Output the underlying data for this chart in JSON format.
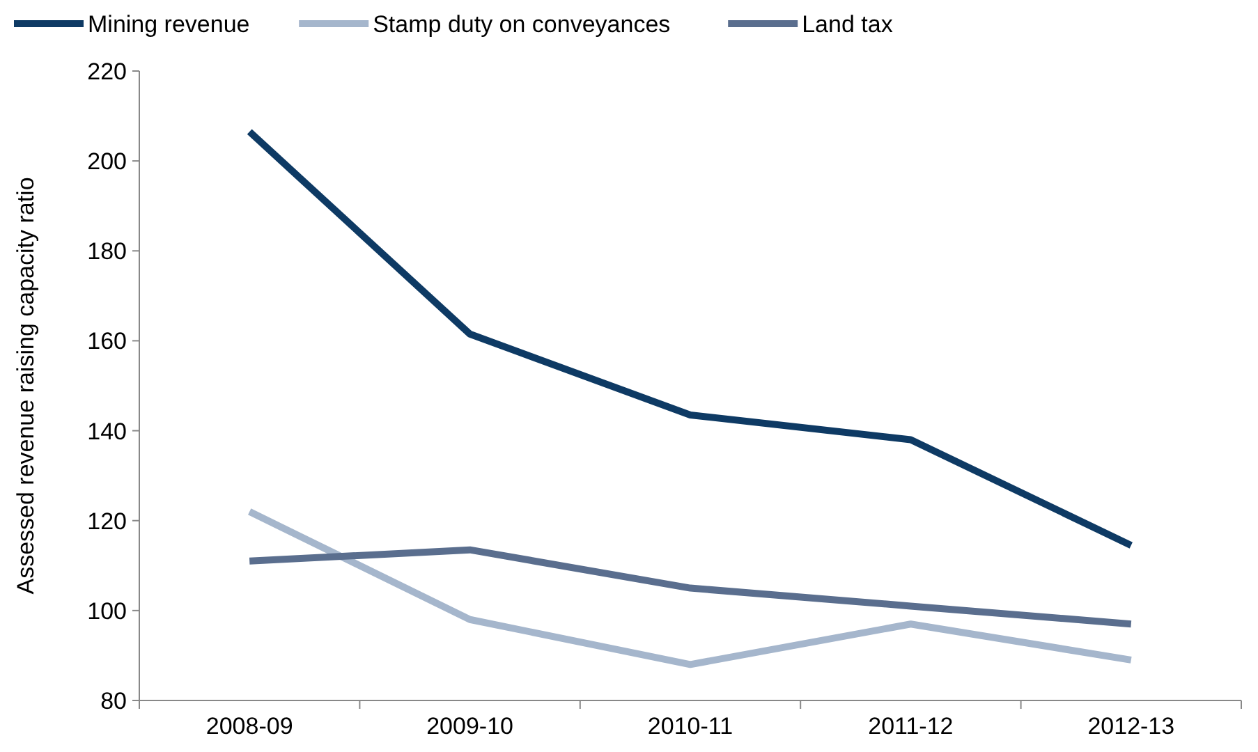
{
  "chart_data": {
    "type": "line",
    "ylabel": "Assessed revenue raising capacity ratio",
    "categories": [
      "2008-09",
      "2009-10",
      "2010-11",
      "2011-12",
      "2012-13"
    ],
    "series": [
      {
        "name": "Mining revenue",
        "color": "#0e3a64",
        "values": [
          206.5,
          161.5,
          143.5,
          138,
          114.5
        ]
      },
      {
        "name": "Stamp duty on conveyances",
        "color": "#a5b6cc",
        "values": [
          122,
          98,
          88,
          97,
          89
        ]
      },
      {
        "name": "Land tax",
        "color": "#5a6e8e",
        "values": [
          111,
          113.5,
          105,
          101,
          97
        ]
      }
    ],
    "ylim": [
      80,
      220
    ],
    "yticks": [
      80,
      100,
      120,
      140,
      160,
      180,
      200,
      220
    ],
    "grid": false,
    "legend": "top"
  }
}
